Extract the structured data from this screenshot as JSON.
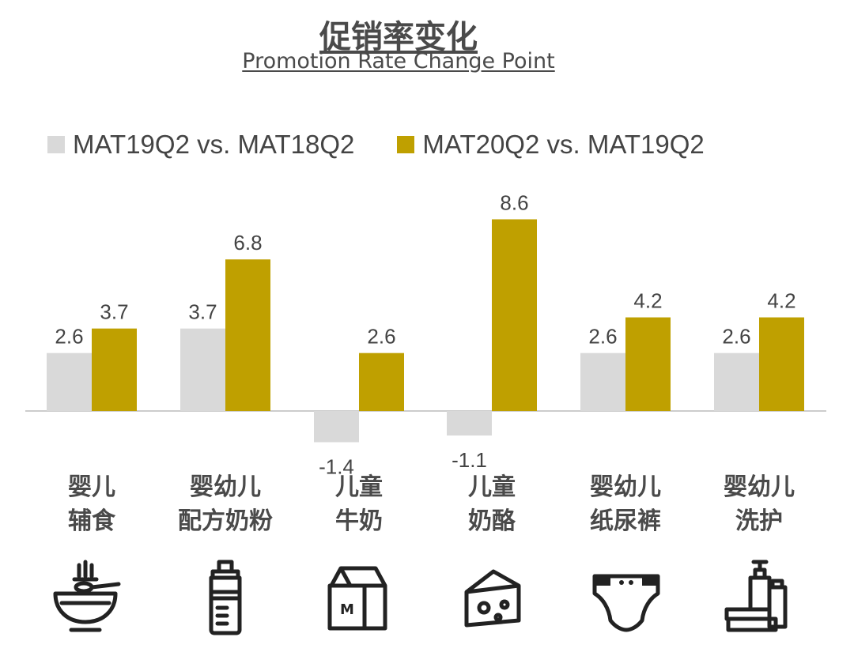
{
  "header": {
    "title": "促销率变化",
    "subtitle": "Promotion Rate Change Point"
  },
  "colors": {
    "series1": "#d9d9d9",
    "series2": "#bfa000",
    "axis": "#cccccc",
    "text": "#4a4a4a"
  },
  "chart_data": {
    "type": "bar",
    "categories": [
      "婴儿辅食",
      "婴幼儿配方奶粉",
      "儿童牛奶",
      "儿童奶酪",
      "婴幼儿纸尿裤",
      "婴幼儿洗护"
    ],
    "category_lines": [
      [
        "婴儿",
        "辅食"
      ],
      [
        "婴幼儿",
        "配方奶粉"
      ],
      [
        "儿童",
        "牛奶"
      ],
      [
        "儿童",
        "奶酪"
      ],
      [
        "婴幼儿",
        "纸尿裤"
      ],
      [
        "婴幼儿",
        "洗护"
      ]
    ],
    "series": [
      {
        "name": "MAT19Q2 vs. MAT18Q2",
        "values": [
          2.6,
          3.7,
          -1.4,
          -1.1,
          2.6,
          2.6
        ],
        "color": "#d9d9d9"
      },
      {
        "name": "MAT20Q2 vs. MAT19Q2",
        "values": [
          3.7,
          6.8,
          2.6,
          8.6,
          4.2,
          4.2
        ],
        "color": "#bfa000"
      }
    ],
    "ylim": [
      -2,
      9
    ],
    "grid": false,
    "legend_position": "top-left",
    "xlabel": "",
    "ylabel": ""
  },
  "icons": [
    "bowl-icon",
    "baby-bottle-icon",
    "milk-carton-icon",
    "cheese-icon",
    "diaper-icon",
    "toiletries-icon"
  ]
}
